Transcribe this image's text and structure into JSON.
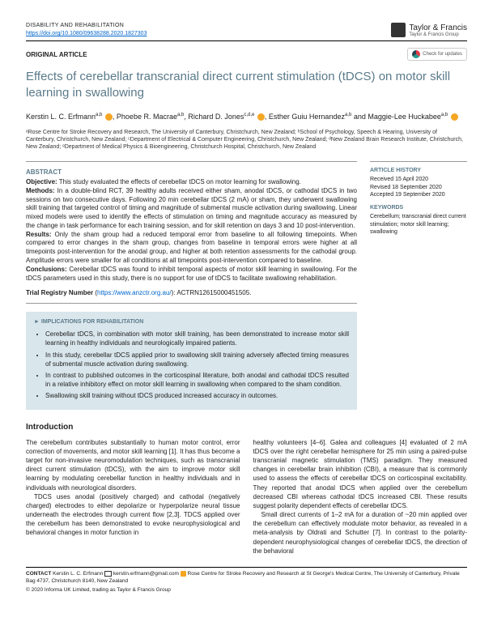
{
  "header": {
    "journal": "DISABILITY AND REHABILITATION",
    "doi": "https://doi.org/10.1080/09638288.2020.1827303",
    "publisher": "Taylor & Francis",
    "publisher_sub": "Taylor & Francis Group",
    "article_type": "ORIGINAL ARTICLE",
    "updates_label": "Check for updates"
  },
  "title": "Effects of cerebellar transcranial direct current stimulation (tDCS) on motor skill learning in swallowing",
  "authors": [
    {
      "name": "Kerstin L. C. Erfmann",
      "aff": "a,b"
    },
    {
      "name": "Phoebe R. Macrae",
      "aff": "a,b"
    },
    {
      "name": "Richard D. Jones",
      "aff": "c,d,e"
    },
    {
      "name": "Esther Guiu Hernandez",
      "aff": "a,b"
    },
    {
      "name": "Maggie-Lee Huckabee",
      "aff": "a,b"
    }
  ],
  "affiliations": "ᵃRose Centre for Stroke Recovery and Research, The University of Canterbury, Christchurch, New Zealand; ᵇSchool of Psychology, Speech & Hearing, University of Canterbury, Christchurch, New Zealand; ᶜDepartment of Electrical & Computer Engineering, Christchurch, New Zealand; ᵈNew Zealand Brain Research Institute, Christchurch, New Zealand; ᵉDepartment of Medical Physics & Bioengineering, Christchurch Hospital, Christchurch, New Zealand",
  "abstract": {
    "heading": "ABSTRACT",
    "objective_label": "Objective:",
    "objective": " This study evaluated the effects of cerebellar tDCS on motor learning for swallowing.",
    "methods_label": "Methods:",
    "methods": " In a double-blind RCT, 39 healthy adults received either sham, anodal tDCS, or cathodal tDCS in two sessions on two consecutive days. Following 20 min cerebellar tDCS (2 mA) or sham, they underwent swallowing skill training that targeted control of timing and magnitude of submental muscle activation during swallowing. Linear mixed models were used to identify the effects of stimulation on timing and magnitude accuracy as measured by the change in task performance for each training session, and for skill retention on days 3 and 10 post-intervention.",
    "results_label": "Results:",
    "results": " Only the sham group had a reduced temporal error from baseline to all following timepoints. When compared to error changes in the sham group, changes from baseline in temporal errors were higher at all timepoints post-intervention for the anodal group, and higher at both retention assessments for the cathodal group. Amplitude errors were smaller for all conditions at all timepoints post-intervention compared to baseline.",
    "conclusions_label": "Conclusions:",
    "conclusions": " Cerebellar tDCS was found to inhibit temporal aspects of motor skill learning in swallowing. For the tDCS parameters used in this study, there is no support for use of tDCS to facilitate swallowing rehabilitation.",
    "trial_label": "Trial Registry Number",
    "trial_url": "https://www.anzctr.org.au/",
    "trial_id": ": ACTRN12615000451505."
  },
  "sidebar": {
    "history_heading": "ARTICLE HISTORY",
    "received": "Received 15 April 2020",
    "revised": "Revised 18 September 2020",
    "accepted": "Accepted 19 September 2020",
    "keywords_heading": "KEYWORDS",
    "keywords": "Cerebellum; transcranial direct current stimulation; motor skill learning; swallowing"
  },
  "implications": {
    "heading": "► IMPLICATIONS FOR REHABILITATION",
    "items": [
      "Cerebellar tDCS, in combination with motor skill training, has been demonstrated to increase motor skill learning in healthy individuals and neurologically impaired patients.",
      "In this study, cerebellar tDCS applied prior to swallowing skill training adversely affected timing measures of submental muscle activation during swallowing.",
      "In contrast to published outcomes in the corticospinal literature, both anodal and cathodal tDCS resulted in a relative inhibitory effect on motor skill learning in swallowing when compared to the sham condition.",
      "Swallowing skill training without tDCS produced increased accuracy in outcomes."
    ]
  },
  "intro": {
    "heading": "Introduction",
    "left": "The cerebellum contributes substantially to human motor control, error correction of movements, and motor skill learning [1]. It has thus become a target for non-invasive neuromodulation techniques, such as transcranial direct current stimulation (tDCS), with the aim to improve motor skill learning by modulating cerebellar function in healthy individuals and in individuals with neurological disorders.",
    "left2": "TDCS uses anodal (positively charged) and cathodal (negatively charged) electrodes to either depolarize or hyperpolarize neural tissue underneath the electrodes through current flow [2,3]. TDCS applied over the cerebellum has been demonstrated to evoke neurophysiological and behavioral changes in motor function in",
    "right": "healthy volunteers [4–6]. Galea and colleagues [4] evaluated of 2 mA tDCS over the right cerebellar hemisphere for 25 min using a paired-pulse transcranial magnetic stimulation (TMS) paradigm. They measured changes in cerebellar brain inhibition (CBI), a measure that is commonly used to assess the effects of cerebellar tDCS on corticospinal excitability. They reported that anodal tDCS when applied over the cerebellum decreased CBI whereas cathodal tDCS increased CBI. These results suggest polarity dependent effects of cerebellar tDCS.",
    "right2": "Small direct currents of 1–2 mA for a duration of ~20 min applied over the cerebellum can effectively modulate motor behavior, as revealed in a meta-analysis by Oldrati and Schutter [7]. In contrast to the polarity-dependent neurophysiological changes of cerebellar tDCS, the direction of the behavioral"
  },
  "footer": {
    "contact_label": "CONTACT",
    "contact_name": " Kerstin L. C. Erfmann ",
    "contact_email": " kerstin.erfmann@gmail.com ",
    "contact_addr": " Rose Centre for Stroke Recovery and Research at St George's Medical Centre, The University of Canterbury, Private Bag 4737, Christchurch 8140, New Zealand",
    "copyright": "© 2020 Informa UK Limited, trading as Taylor & Francis Group"
  },
  "colors": {
    "heading_teal": "#5a7a8a",
    "link_blue": "#0066cc",
    "box_bg": "#d9e6ec",
    "orcid_orange": "#f5a623"
  }
}
